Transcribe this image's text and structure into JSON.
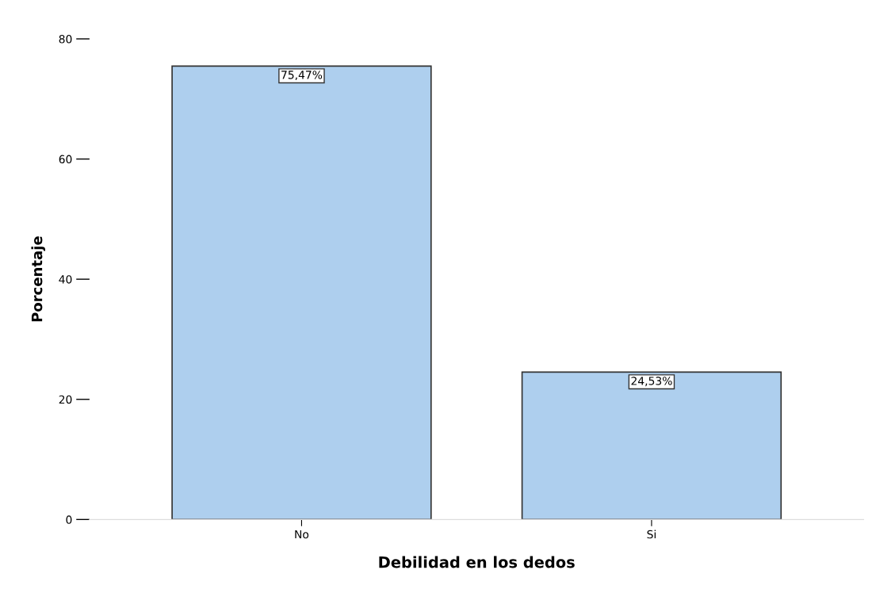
{
  "chart_data": {
    "type": "bar",
    "xlabel": "Debilidad en los dedos",
    "ylabel": "Porcentaje",
    "categories": [
      "No",
      "Si"
    ],
    "values": [
      75.47,
      24.53
    ],
    "value_labels": [
      "75,47%",
      "24,53%"
    ],
    "color": "#aecfee",
    "ylim": [
      0,
      80
    ],
    "yticks": [
      0,
      20,
      40,
      60,
      80
    ],
    "grid": false
  }
}
